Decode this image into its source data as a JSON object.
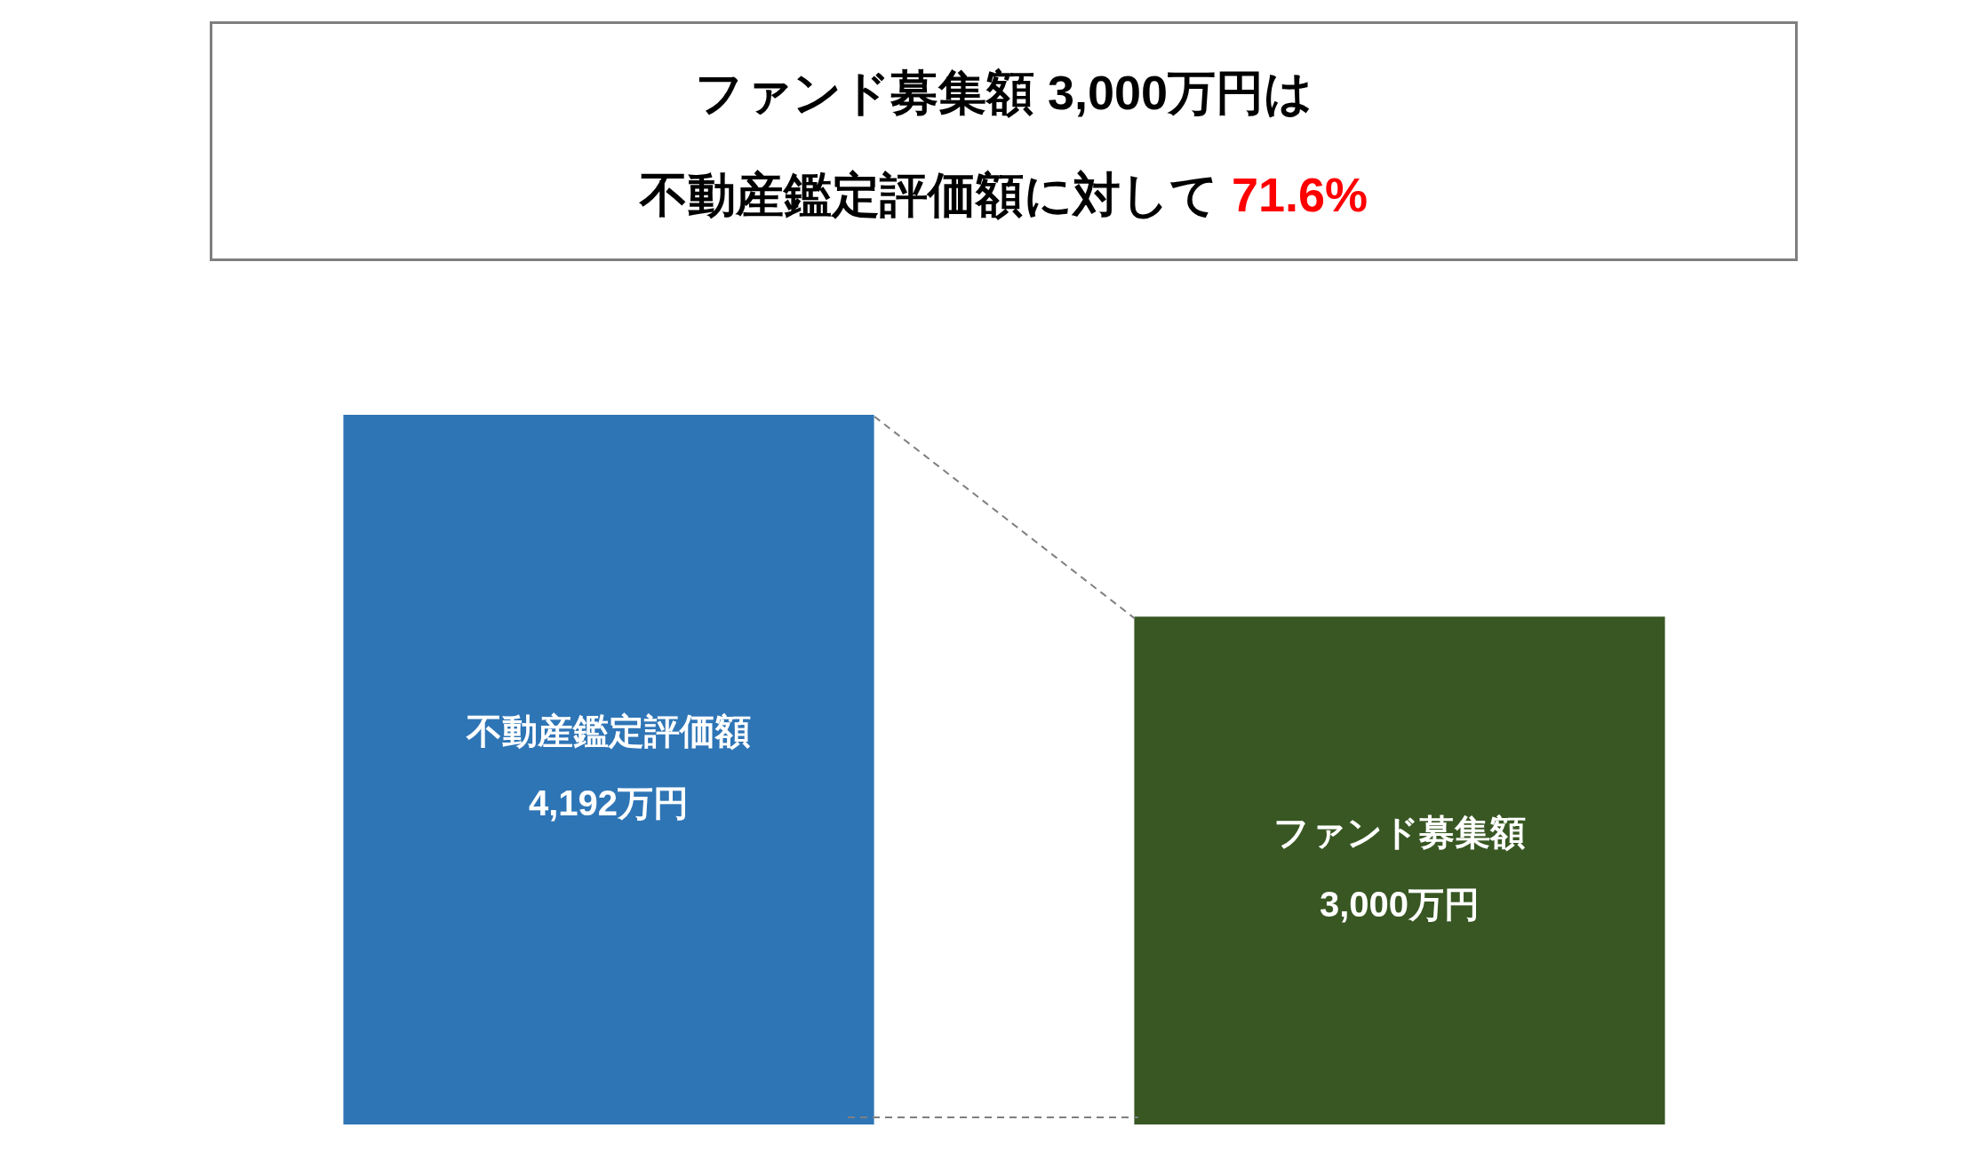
{
  "chart_data": {
    "type": "bar",
    "title": "ファンド募集額 3,000万円は",
    "subtitle": "不動産鑑定評価額に対して 71.6%",
    "categories": [
      "不動産鑑定評価額",
      "ファンド募集額"
    ],
    "values": [
      4192,
      3000
    ],
    "colors": [
      "#2e75b6",
      "#385723"
    ],
    "value_labels": [
      "4,192万円",
      "3,000万円"
    ],
    "tick_labels": false
  }
}
